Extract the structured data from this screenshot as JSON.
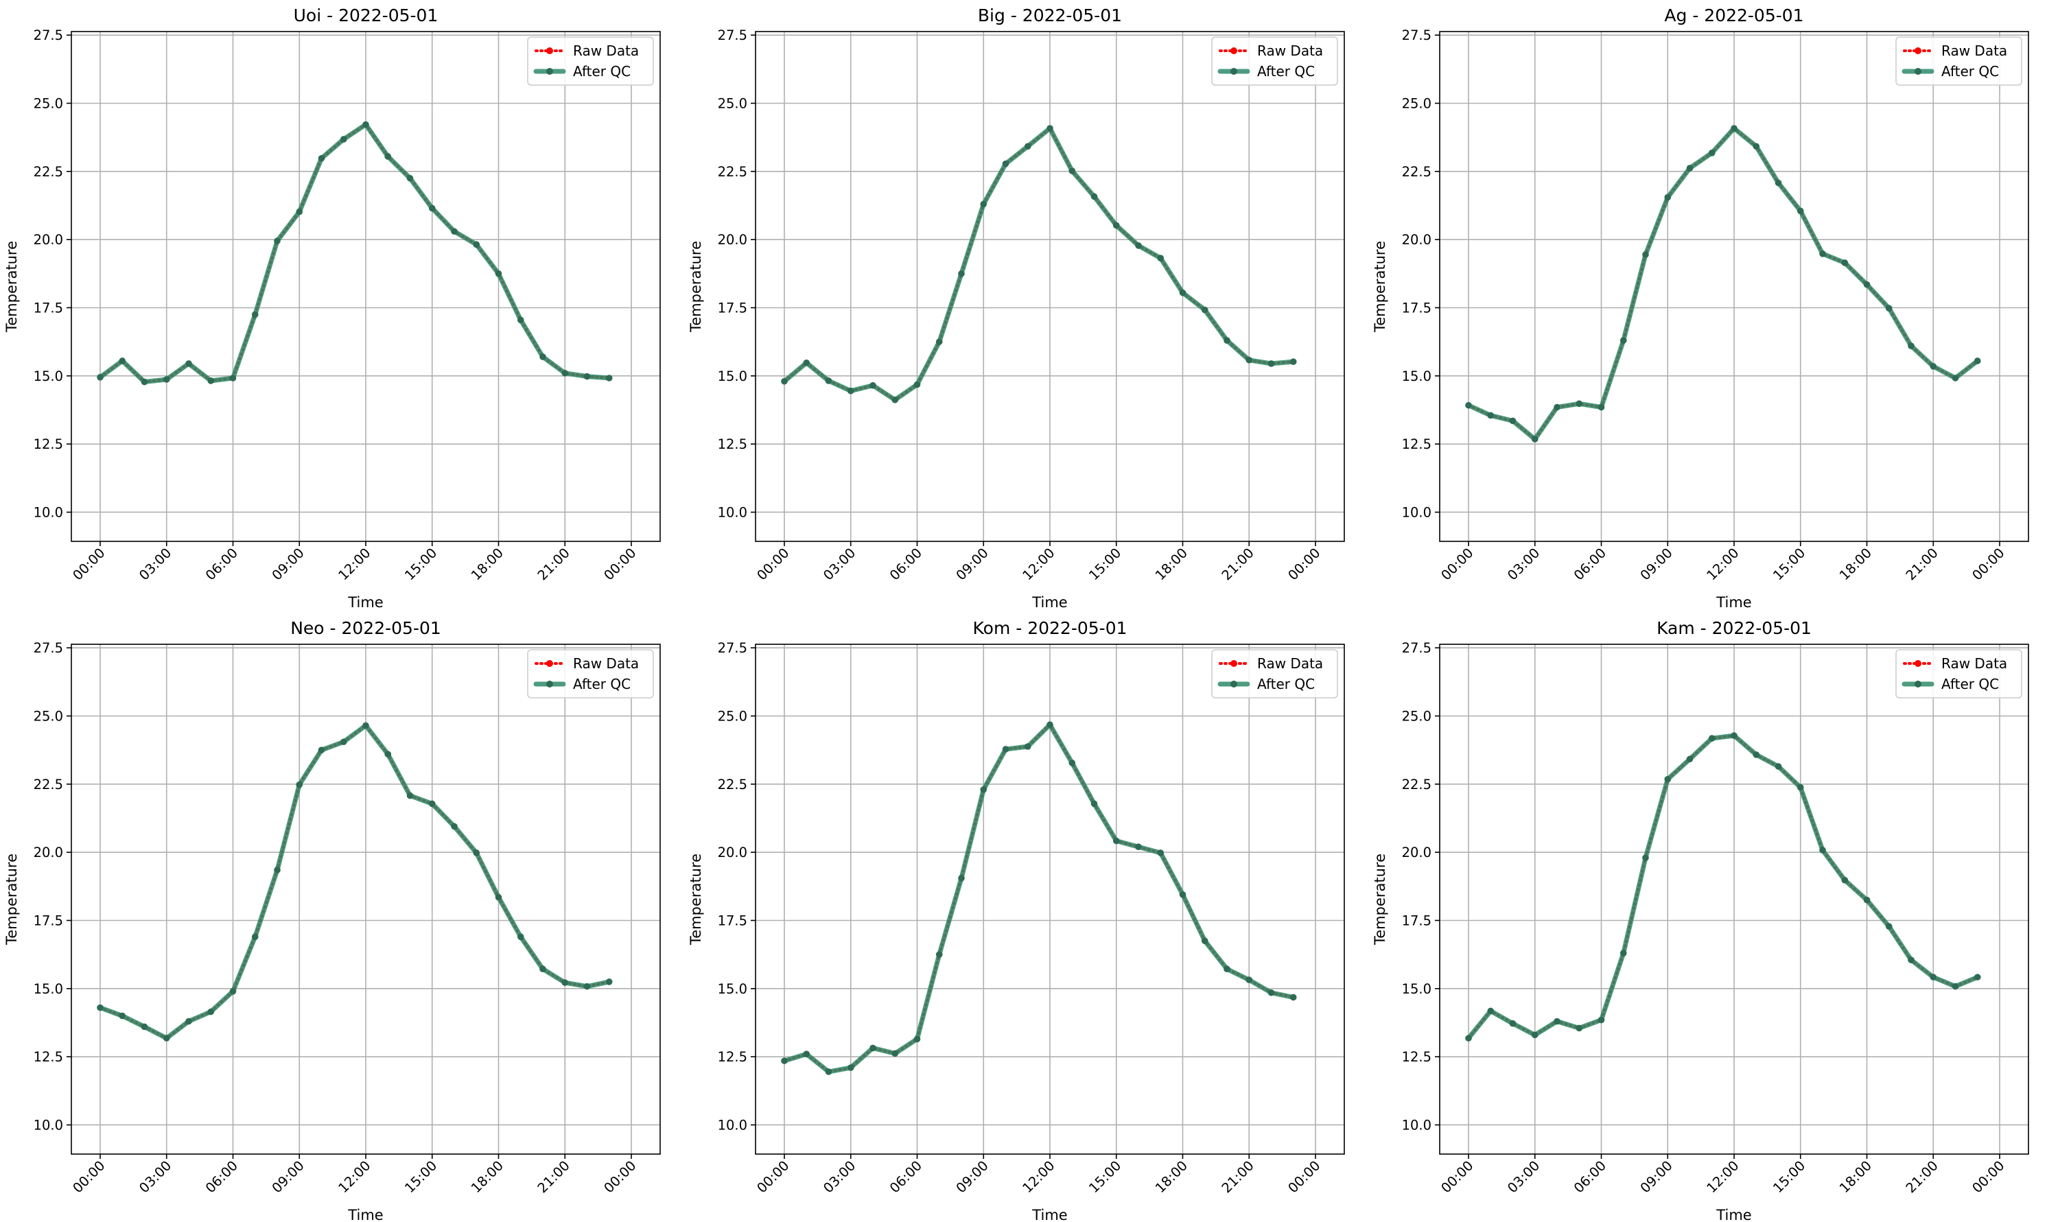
{
  "colors": {
    "raw": "#ff0000",
    "qc": "#2e8b6a",
    "qc_marker": "#2e6b55",
    "grid": "#b0b0b0"
  },
  "legend": {
    "raw_label": "Raw Data",
    "qc_label": "After QC",
    "placement": "upper right"
  },
  "chart_data": [
    {
      "type": "line",
      "title": "Uoi - 2022-05-01",
      "xlabel": "Time",
      "ylabel": "Temperature",
      "ylim": [
        8.93,
        27.63
      ],
      "yticks": [
        10.0,
        12.5,
        15.0,
        17.5,
        20.0,
        22.5,
        25.0,
        27.5
      ],
      "xticks": [
        "00:00",
        "03:00",
        "06:00",
        "09:00",
        "12:00",
        "15:00",
        "18:00",
        "21:00",
        "00:00"
      ],
      "grid": true,
      "series": [
        {
          "name": "Raw Data",
          "values": [
            14.95,
            15.55,
            14.78,
            14.87,
            15.45,
            14.82,
            14.92,
            17.25,
            19.95,
            21.02,
            22.98,
            23.68,
            24.22,
            23.05,
            22.25,
            21.15,
            20.3,
            19.82,
            18.75,
            17.05,
            15.7,
            15.1,
            14.98,
            14.92
          ]
        },
        {
          "name": "After QC",
          "values": [
            14.95,
            15.55,
            14.78,
            14.87,
            15.45,
            14.82,
            14.92,
            17.25,
            19.95,
            21.02,
            22.98,
            23.68,
            24.22,
            23.05,
            22.25,
            21.15,
            20.3,
            19.82,
            18.75,
            17.05,
            15.7,
            15.1,
            14.98,
            14.92
          ]
        }
      ]
    },
    {
      "type": "line",
      "title": "Big - 2022-05-01",
      "xlabel": "Time",
      "ylabel": "Temperature",
      "ylim": [
        8.93,
        27.63
      ],
      "yticks": [
        10.0,
        12.5,
        15.0,
        17.5,
        20.0,
        22.5,
        25.0,
        27.5
      ],
      "xticks": [
        "00:00",
        "03:00",
        "06:00",
        "09:00",
        "12:00",
        "15:00",
        "18:00",
        "21:00",
        "00:00"
      ],
      "grid": true,
      "series": [
        {
          "name": "Raw Data",
          "values": [
            14.8,
            15.48,
            14.82,
            14.45,
            14.65,
            14.12,
            14.68,
            16.25,
            18.75,
            21.3,
            22.78,
            23.42,
            24.08,
            22.52,
            21.58,
            20.52,
            19.78,
            19.32,
            18.05,
            17.42,
            16.3,
            15.58,
            15.45,
            15.52
          ]
        },
        {
          "name": "After QC",
          "values": [
            14.8,
            15.48,
            14.82,
            14.45,
            14.65,
            14.12,
            14.68,
            16.25,
            18.75,
            21.3,
            22.78,
            23.42,
            24.08,
            22.52,
            21.58,
            20.52,
            19.78,
            19.32,
            18.05,
            17.42,
            16.3,
            15.58,
            15.45,
            15.52
          ]
        }
      ]
    },
    {
      "type": "line",
      "title": "Ag - 2022-05-01",
      "xlabel": "Time",
      "ylabel": "Temperature",
      "ylim": [
        8.93,
        27.63
      ],
      "yticks": [
        10.0,
        12.5,
        15.0,
        17.5,
        20.0,
        22.5,
        25.0,
        27.5
      ],
      "xticks": [
        "00:00",
        "03:00",
        "06:00",
        "09:00",
        "12:00",
        "15:00",
        "18:00",
        "21:00",
        "00:00"
      ],
      "grid": true,
      "series": [
        {
          "name": "Raw Data",
          "values": [
            13.92,
            13.55,
            13.35,
            12.68,
            13.85,
            13.98,
            13.85,
            16.3,
            19.45,
            21.55,
            22.62,
            23.18,
            24.08,
            23.42,
            22.08,
            21.05,
            19.48,
            19.15,
            18.35,
            17.48,
            16.1,
            15.35,
            14.92,
            15.55
          ]
        },
        {
          "name": "After QC",
          "values": [
            13.92,
            13.55,
            13.35,
            12.68,
            13.85,
            13.98,
            13.85,
            16.3,
            19.45,
            21.55,
            22.62,
            23.18,
            24.08,
            23.42,
            22.08,
            21.05,
            19.48,
            19.15,
            18.35,
            17.48,
            16.1,
            15.35,
            14.92,
            15.55
          ]
        }
      ]
    },
    {
      "type": "line",
      "title": "Neo - 2022-05-01",
      "xlabel": "Time",
      "ylabel": "Temperature",
      "ylim": [
        8.93,
        27.63
      ],
      "yticks": [
        10.0,
        12.5,
        15.0,
        17.5,
        20.0,
        22.5,
        25.0,
        27.5
      ],
      "xticks": [
        "00:00",
        "03:00",
        "06:00",
        "09:00",
        "12:00",
        "15:00",
        "18:00",
        "21:00",
        "00:00"
      ],
      "grid": true,
      "series": [
        {
          "name": "Raw Data",
          "values": [
            14.3,
            14.0,
            13.6,
            13.18,
            13.8,
            14.15,
            14.9,
            16.9,
            19.35,
            22.48,
            23.75,
            24.05,
            24.65,
            23.6,
            22.08,
            21.78,
            20.95,
            19.98,
            18.35,
            16.9,
            15.72,
            15.22,
            15.08,
            15.25
          ]
        },
        {
          "name": "After QC",
          "values": [
            14.3,
            14.0,
            13.6,
            13.18,
            13.8,
            14.15,
            14.9,
            16.9,
            19.35,
            22.48,
            23.75,
            24.05,
            24.65,
            23.6,
            22.08,
            21.78,
            20.95,
            19.98,
            18.35,
            16.9,
            15.72,
            15.22,
            15.08,
            15.25
          ]
        }
      ]
    },
    {
      "type": "line",
      "title": "Kom - 2022-05-01",
      "xlabel": "Time",
      "ylabel": "Temperature",
      "ylim": [
        8.93,
        27.63
      ],
      "yticks": [
        10.0,
        12.5,
        15.0,
        17.5,
        20.0,
        22.5,
        25.0,
        27.5
      ],
      "xticks": [
        "00:00",
        "03:00",
        "06:00",
        "09:00",
        "12:00",
        "15:00",
        "18:00",
        "21:00",
        "00:00"
      ],
      "grid": true,
      "series": [
        {
          "name": "Raw Data",
          "values": [
            12.35,
            12.6,
            11.95,
            12.1,
            12.82,
            12.62,
            13.15,
            16.25,
            19.05,
            22.3,
            23.78,
            23.88,
            24.68,
            23.28,
            21.78,
            20.42,
            20.2,
            19.98,
            18.45,
            16.75,
            15.72,
            15.32,
            14.85,
            14.68
          ]
        },
        {
          "name": "After QC",
          "values": [
            12.35,
            12.6,
            11.95,
            12.1,
            12.82,
            12.62,
            13.15,
            16.25,
            19.05,
            22.3,
            23.78,
            23.88,
            24.68,
            23.28,
            21.78,
            20.42,
            20.2,
            19.98,
            18.45,
            16.75,
            15.72,
            15.32,
            14.85,
            14.68
          ]
        }
      ]
    },
    {
      "type": "line",
      "title": "Kam - 2022-05-01",
      "xlabel": "Time",
      "ylabel": "Temperature",
      "ylim": [
        8.93,
        27.63
      ],
      "yticks": [
        10.0,
        12.5,
        15.0,
        17.5,
        20.0,
        22.5,
        25.0,
        27.5
      ],
      "xticks": [
        "00:00",
        "03:00",
        "06:00",
        "09:00",
        "12:00",
        "15:00",
        "18:00",
        "21:00",
        "00:00"
      ],
      "grid": true,
      "series": [
        {
          "name": "Raw Data",
          "values": [
            13.18,
            14.18,
            13.72,
            13.3,
            13.8,
            13.55,
            13.85,
            16.3,
            19.8,
            22.68,
            23.42,
            24.18,
            24.28,
            23.58,
            23.15,
            22.38,
            20.08,
            18.98,
            18.25,
            17.28,
            16.05,
            15.42,
            15.08,
            15.42
          ]
        },
        {
          "name": "After QC",
          "values": [
            13.18,
            14.18,
            13.72,
            13.3,
            13.8,
            13.55,
            13.85,
            16.3,
            19.8,
            22.68,
            23.42,
            24.18,
            24.28,
            23.58,
            23.15,
            22.38,
            20.08,
            18.98,
            18.25,
            17.28,
            16.05,
            15.42,
            15.08,
            15.42
          ]
        }
      ]
    }
  ]
}
